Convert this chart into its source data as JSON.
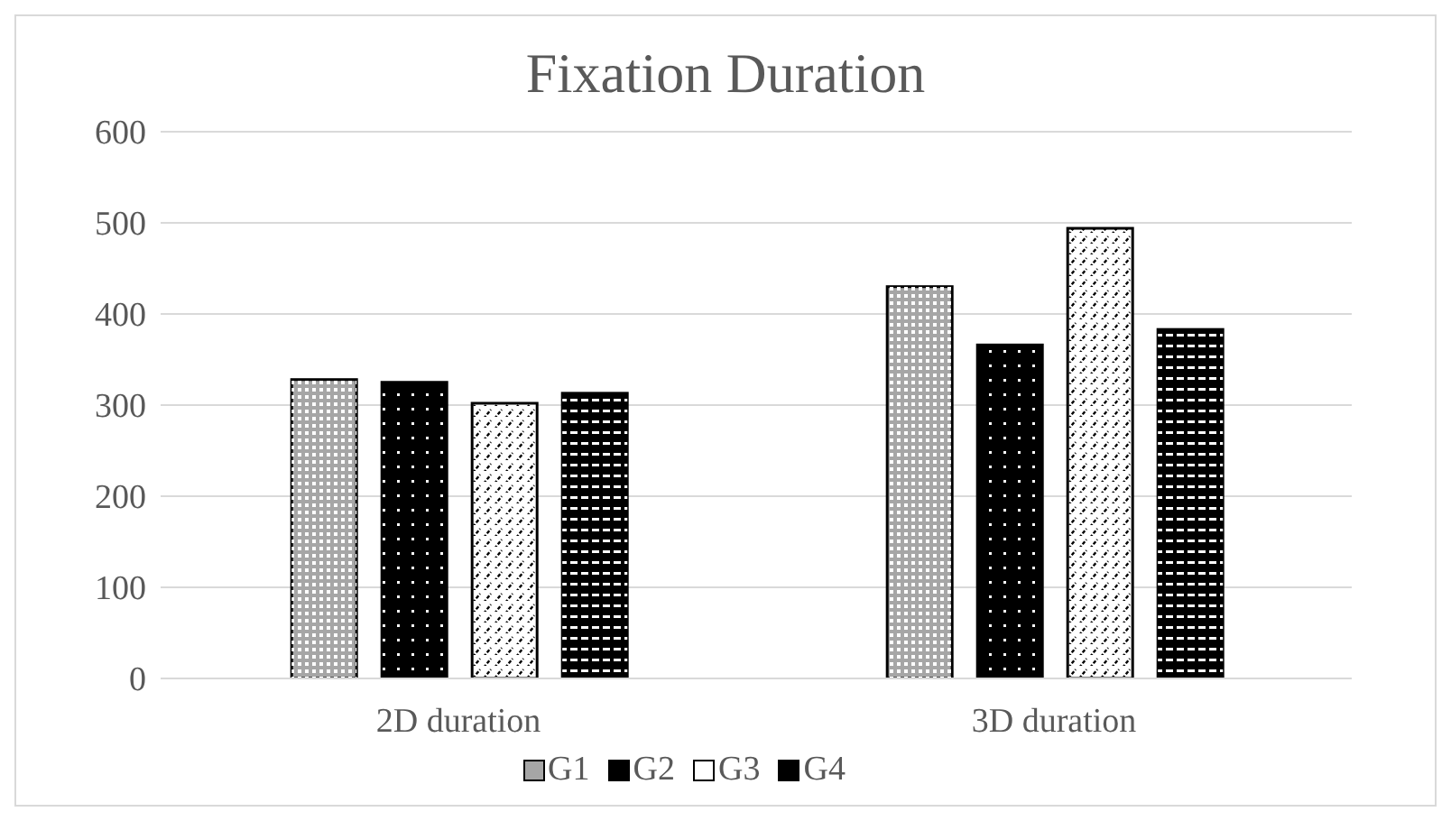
{
  "chart_data": {
    "type": "bar",
    "title": "Fixation Duration",
    "categories": [
      "2D duration",
      "3D duration"
    ],
    "series": [
      {
        "name": "G1",
        "color": "#a6a6a6",
        "values": [
          328,
          430
        ]
      },
      {
        "name": "G2",
        "color": "#000000",
        "values": [
          325,
          366
        ]
      },
      {
        "name": "G3",
        "color": "#ffffff",
        "values": [
          302,
          494
        ]
      },
      {
        "name": "G4",
        "color": "#000000",
        "values": [
          313,
          383
        ]
      }
    ],
    "ylim": [
      0,
      600
    ],
    "yticks": [
      0,
      100,
      200,
      300,
      400,
      500,
      600
    ],
    "grid": "y",
    "legend": "bottom"
  }
}
